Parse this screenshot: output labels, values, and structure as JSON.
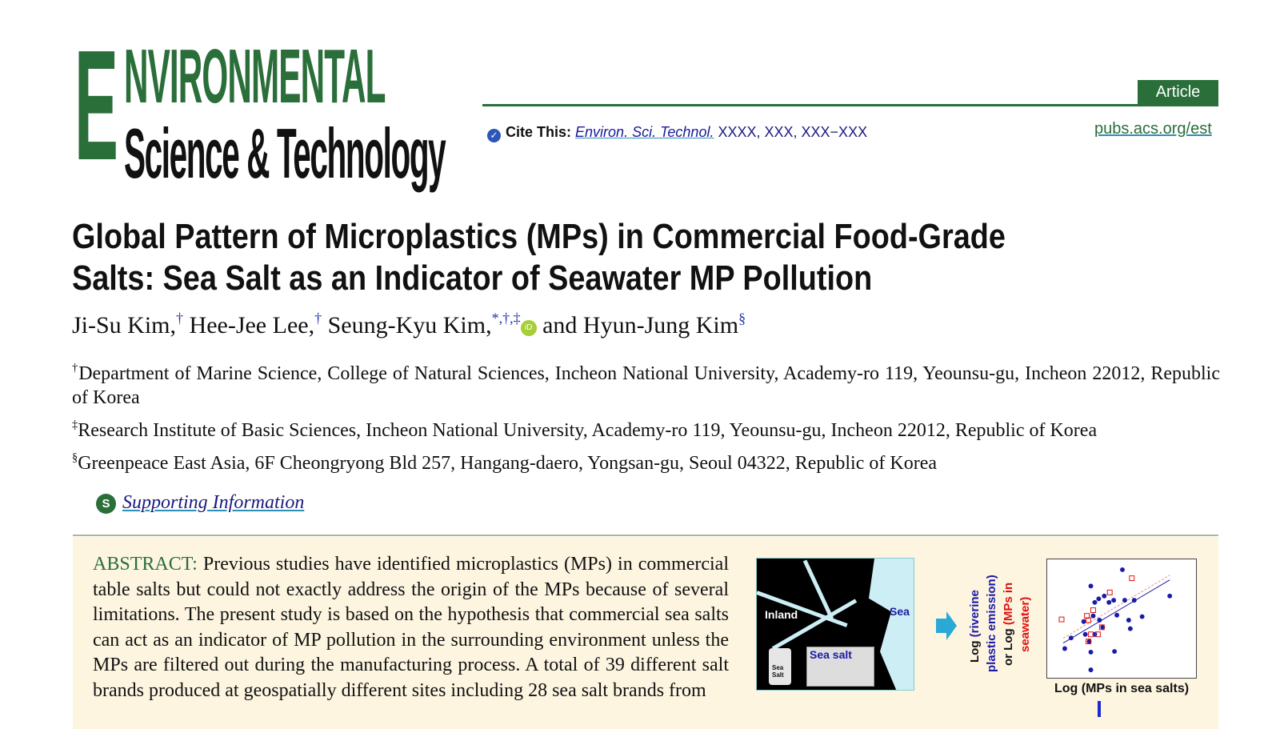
{
  "journal": {
    "logo_line1_initial": "E",
    "logo_line1_rest": "NVIRONMENTAL",
    "logo_line2": "Science & Technology",
    "article_type": "Article",
    "cite_label": "Cite This:",
    "cite_journal": "Environ. Sci. Technol.",
    "cite_rest": "XXXX, XXX, XXX−XXX",
    "site": "pubs.acs.org/est"
  },
  "title_line1": "Global Pattern of Microplastics (MPs) in Commercial Food-Grade",
  "title_line2": "Salts: Sea Salt as an Indicator of Seawater MP Pollution",
  "authors": [
    {
      "name": "Ji-Su Kim,",
      "marks": "†"
    },
    {
      "name": "Hee-Jee Lee,",
      "marks": "†"
    },
    {
      "name": "Seung-Kyu Kim,",
      "marks": "*,†,‡"
    },
    {
      "name": "and Hyun-Jung Kim",
      "marks": "§"
    }
  ],
  "orcid_label": "iD",
  "affiliations": [
    {
      "mark": "†",
      "text": "Department of Marine Science, College of Natural Sciences, Incheon National University, Academy-ro 119, Yeounsu-gu, Incheon 22012, Republic of Korea"
    },
    {
      "mark": "‡",
      "text": "Research Institute of Basic Sciences, Incheon National University, Academy-ro 119, Yeounsu-gu, Incheon 22012, Republic of Korea"
    },
    {
      "mark": "§",
      "text": "Greenpeace East Asia, 6F Cheongryong Bld 257, Hangang-daero, Yongsan-gu, Seoul 04322, Republic of Korea"
    }
  ],
  "supporting_info": {
    "icon": "S",
    "label": "Supporting Information"
  },
  "abstract": {
    "heading": "ABSTRACT:",
    "text": "Previous studies have identified microplastics (MPs) in commercial table salts but could not exactly address the origin of the MPs because of several limitations. The present study is based on the hypothesis that commercial sea salts can act as an indicator of MP pollution in the surrounding environment unless the MPs are filtered out during the manufacturing process. A total of 39 different salt brands produced at geospatially different sites including 28 sea salt brands from"
  },
  "toc_graphic": {
    "inland": "Inland",
    "sea": "Sea",
    "sea_salt": "Sea salt",
    "shaker": "Sea Salt",
    "ylabel_a": "Log",
    "ylabel_b": "(riverine",
    "ylabel_c": "plastic emission)",
    "ylabel_d": "or Log",
    "ylabel_e": "(MPs in",
    "ylabel_f": "seawater)",
    "xlabel": "Log (MPs in sea salts)",
    "colors": {
      "blue": "#1a1aa8",
      "red": "#e01010"
    }
  }
}
